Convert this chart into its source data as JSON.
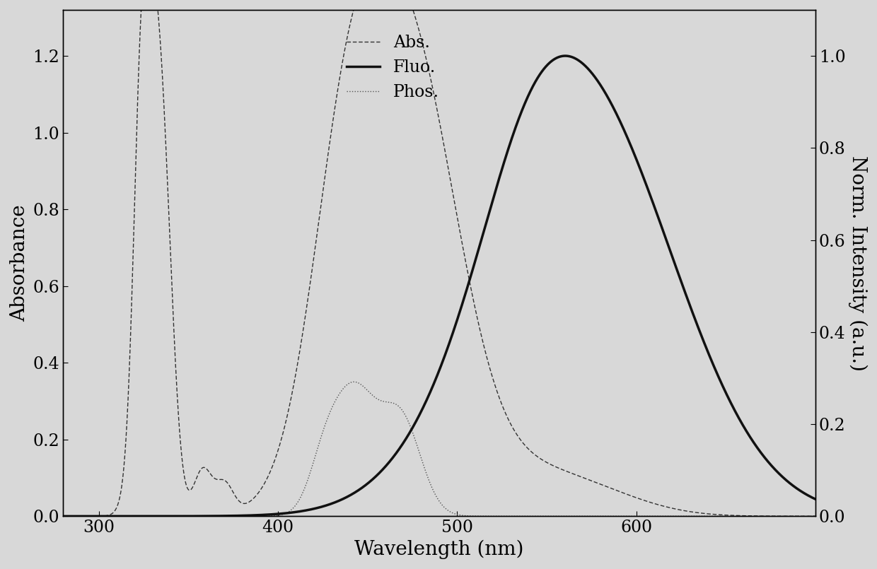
{
  "xlabel": "Wavelength (nm)",
  "ylabel_left": "Absorbance",
  "ylabel_right": "Norm. Intensity (a.u.)",
  "xlim": [
    280,
    700
  ],
  "ylim_left": [
    0.0,
    1.32
  ],
  "ylim_right": [
    0.0,
    1.1
  ],
  "xticks": [
    300,
    400,
    500,
    600
  ],
  "yticks_left": [
    0.0,
    0.2,
    0.4,
    0.6,
    0.8,
    1.0,
    1.2
  ],
  "yticks_right": [
    0.0,
    0.2,
    0.4,
    0.6,
    0.8,
    1.0
  ],
  "legend_labels": [
    "Abs.",
    "Fluo.",
    "Phos."
  ],
  "background_color": "#d8d8d8",
  "font_size_labels": 20,
  "font_size_ticks": 17,
  "font_size_legend": 17
}
